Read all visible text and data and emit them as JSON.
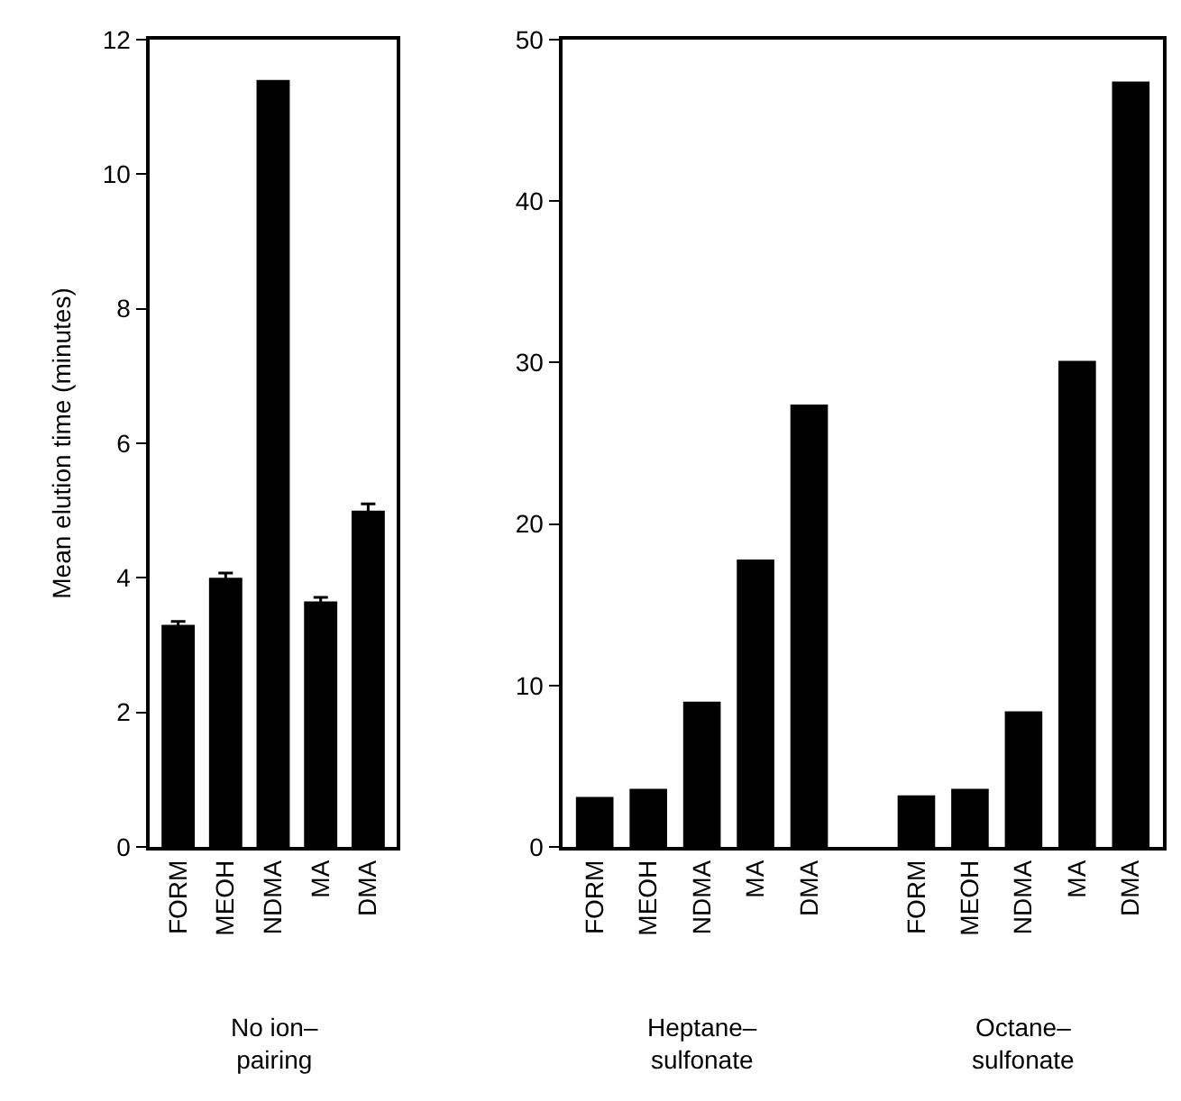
{
  "chart_data": [
    {
      "type": "bar",
      "ylabel": "Mean elution time (minutes)",
      "categories": [
        "FORM",
        "MEOH",
        "NDMA",
        "MA",
        "DMA"
      ],
      "values": [
        3.3,
        4.0,
        11.4,
        3.65,
        5.0
      ],
      "errors": [
        0.05,
        0.07,
        null,
        0.06,
        0.1
      ],
      "color": "#000000",
      "ylim": [
        0,
        12
      ],
      "yticks": [
        0,
        2,
        4,
        6,
        8,
        10,
        12
      ],
      "annotations": [
        "No ion–\npairing"
      ]
    },
    {
      "type": "bar",
      "categories": [
        "FORM",
        "MEOH",
        "NDMA",
        "MA",
        "DMA",
        null,
        "FORM",
        "MEOH",
        "NDMA",
        "MA",
        "DMA"
      ],
      "values": [
        3.1,
        3.6,
        9.0,
        17.8,
        27.4,
        null,
        3.2,
        3.6,
        8.4,
        30.1,
        47.4
      ],
      "color": "#000000",
      "ylim": [
        0,
        50
      ],
      "yticks": [
        0,
        10,
        20,
        30,
        40,
        50
      ],
      "annotations": [
        "Heptane–\nsulfonate",
        "Octane–\nsulfonate"
      ]
    }
  ]
}
